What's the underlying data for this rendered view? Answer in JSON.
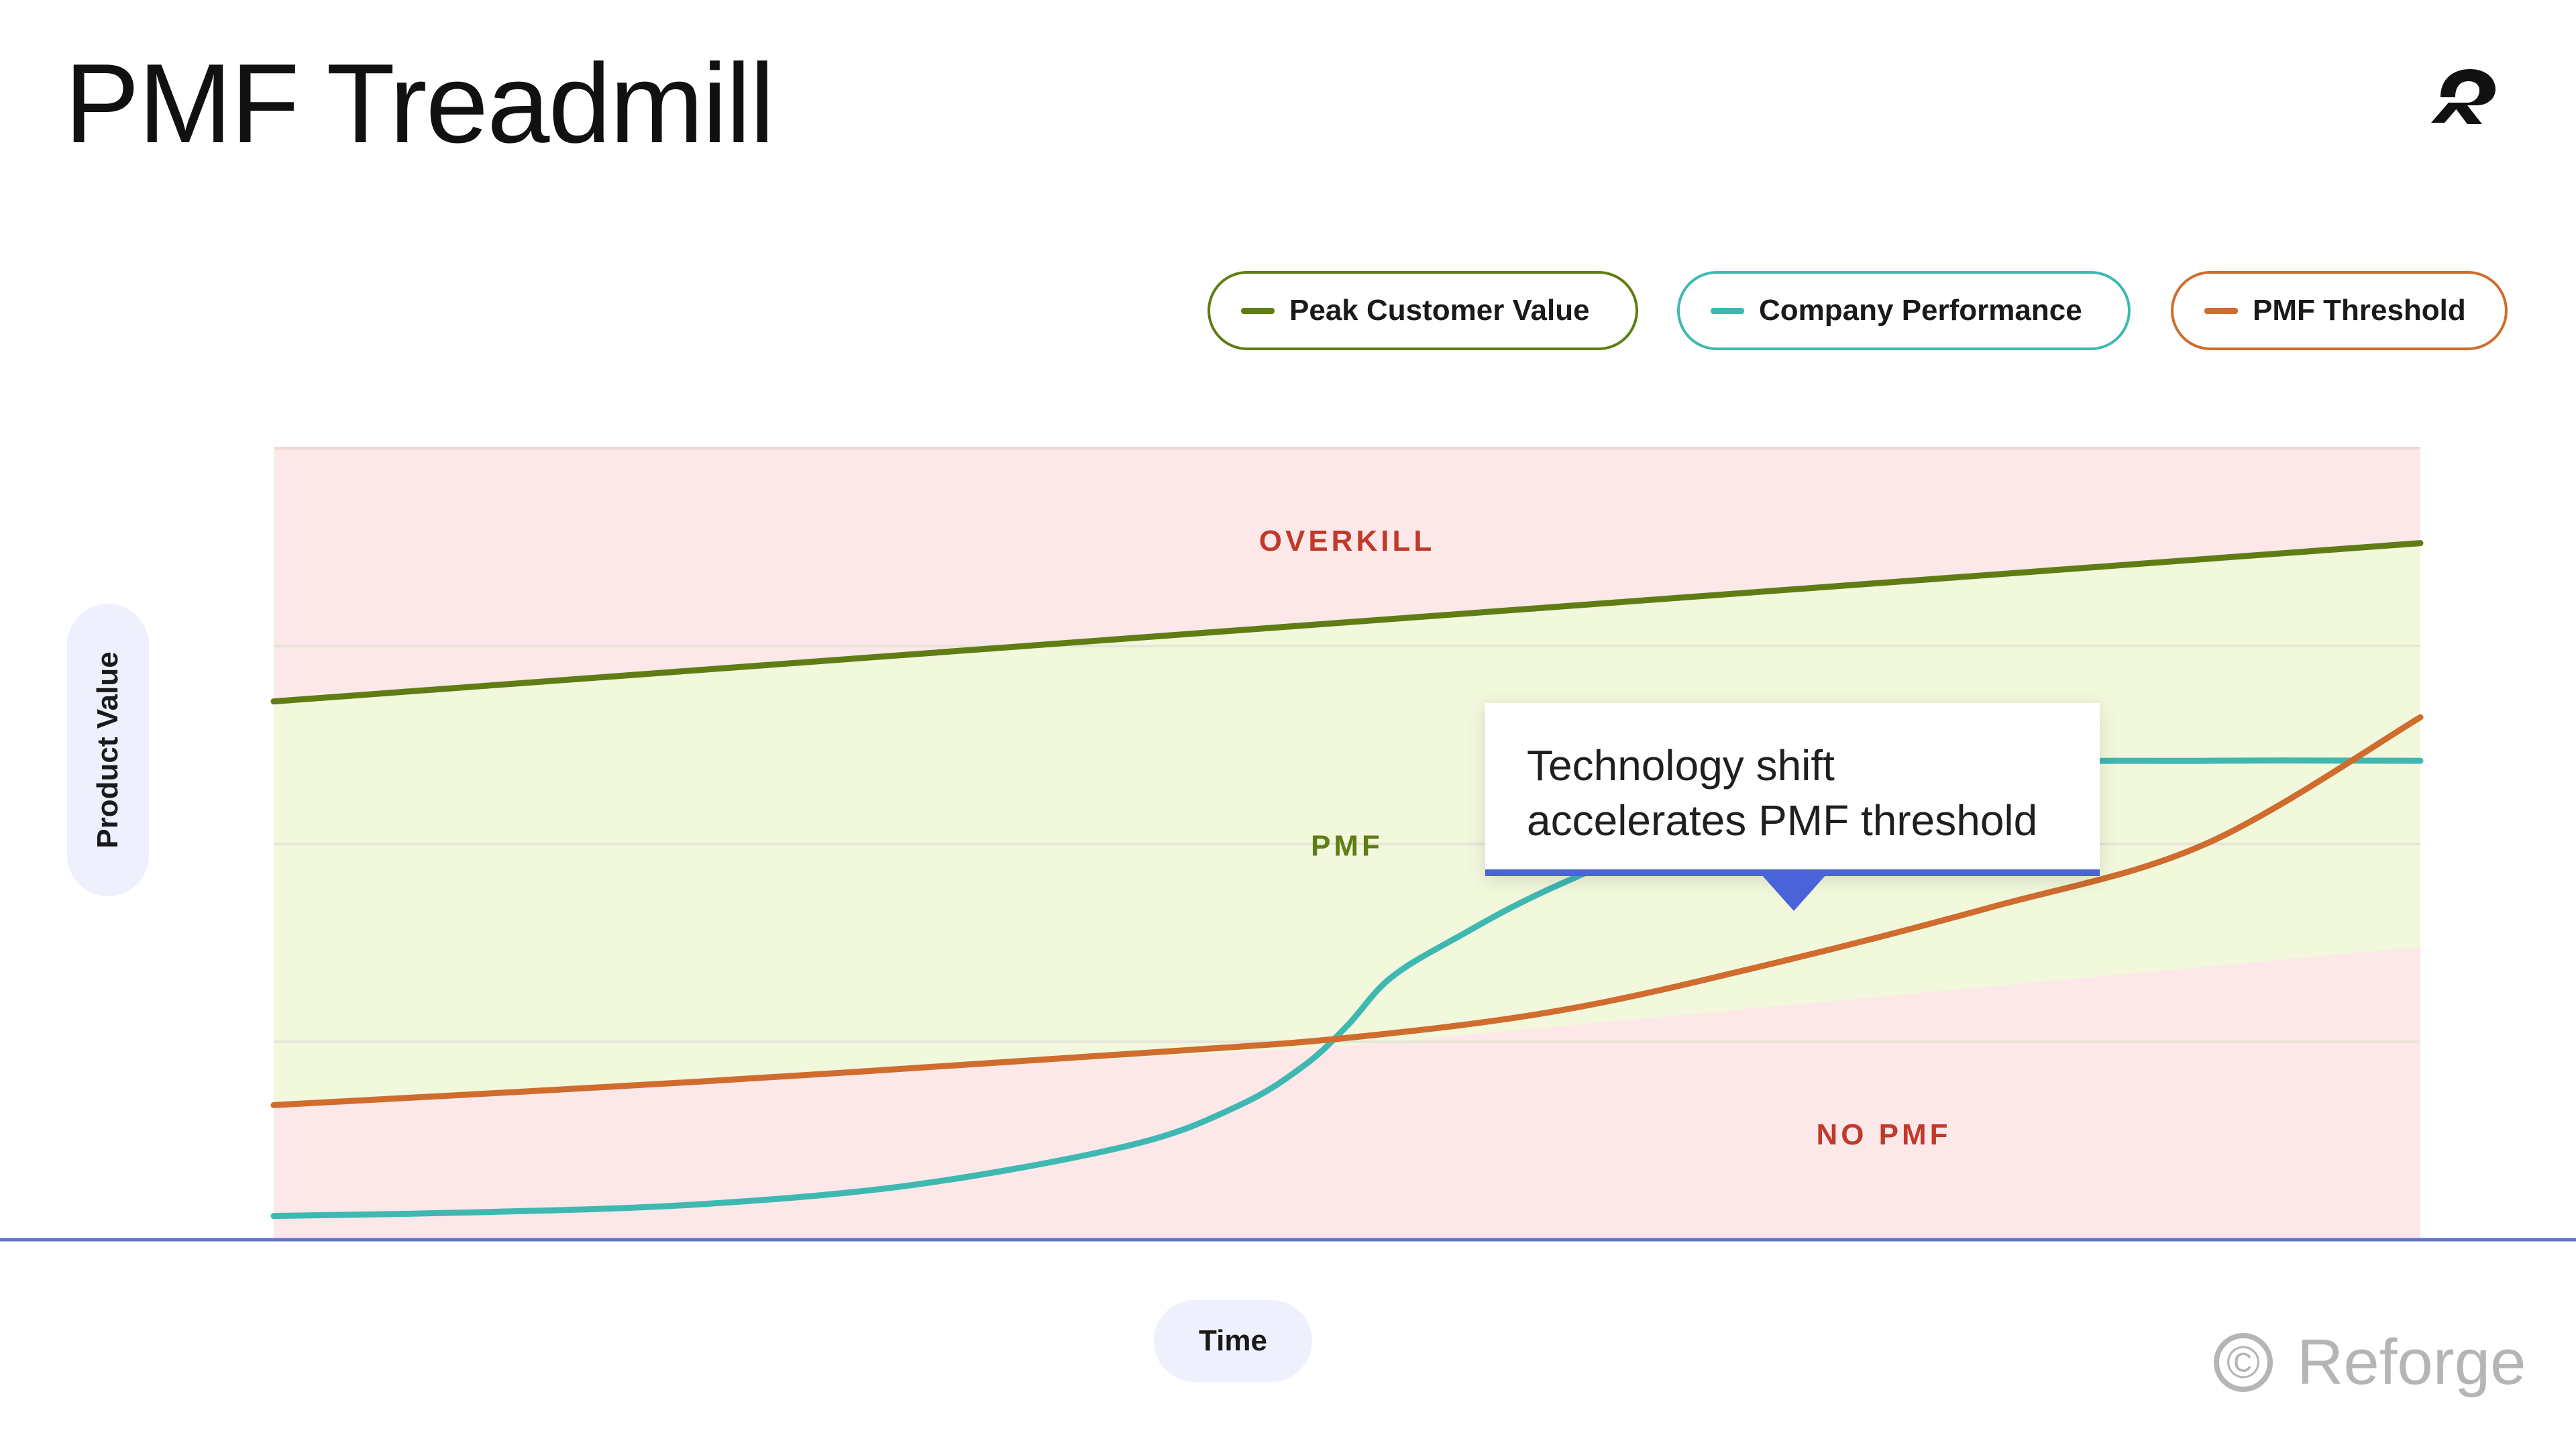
{
  "title": "PMF Treadmill",
  "logo_icon": "reforge-mark-icon",
  "legend": [
    {
      "label": "Peak Customer Value",
      "color": "#5f7d14"
    },
    {
      "label": "Company Performance",
      "color": "#3fb8b2"
    },
    {
      "label": "PMF Threshold",
      "color": "#cf6c2e"
    }
  ],
  "callout": {
    "line1": "Technology shift",
    "line2": "accelerates PMF threshold",
    "accent_color": "#4a63d8"
  },
  "brand": {
    "symbol": "©",
    "name": "Reforge"
  },
  "chart_data": {
    "type": "line",
    "xlabel": "Time",
    "ylabel": "Product Value",
    "xlim": [
      0,
      100
    ],
    "ylim": [
      0,
      100
    ],
    "grid": true,
    "gridlines_y": [
      25,
      50,
      75
    ],
    "regions": [
      {
        "label": "OVERKILL",
        "color": "#c0392b",
        "fill": "#fce8e8"
      },
      {
        "label": "PMF",
        "color": "#5f7d14",
        "fill": "#f2f8dc"
      },
      {
        "label": "NO PMF",
        "color": "#c0392b",
        "fill": "#fce8e8"
      }
    ],
    "series": [
      {
        "name": "Peak Customer Value",
        "color": "#5f7d14",
        "x": [
          0,
          25,
          50,
          75,
          100
        ],
        "y": [
          68,
          73,
          78,
          83,
          88
        ]
      },
      {
        "name": "Company Performance",
        "color": "#3fb8b2",
        "x": [
          0,
          10,
          20,
          30,
          40,
          45,
          48,
          50,
          52,
          55,
          60,
          70,
          80,
          90,
          100
        ],
        "y": [
          3,
          3.5,
          4.5,
          7,
          12,
          17,
          22,
          27,
          33,
          38,
          45,
          56,
          60,
          60.5,
          60.5
        ]
      },
      {
        "name": "PMF Threshold",
        "color": "#cf6c2e",
        "x": [
          0,
          20,
          40,
          50,
          60,
          70,
          80,
          90,
          100
        ],
        "y": [
          17,
          20,
          23.5,
          25.5,
          29,
          35,
          42,
          50,
          66
        ]
      }
    ]
  }
}
